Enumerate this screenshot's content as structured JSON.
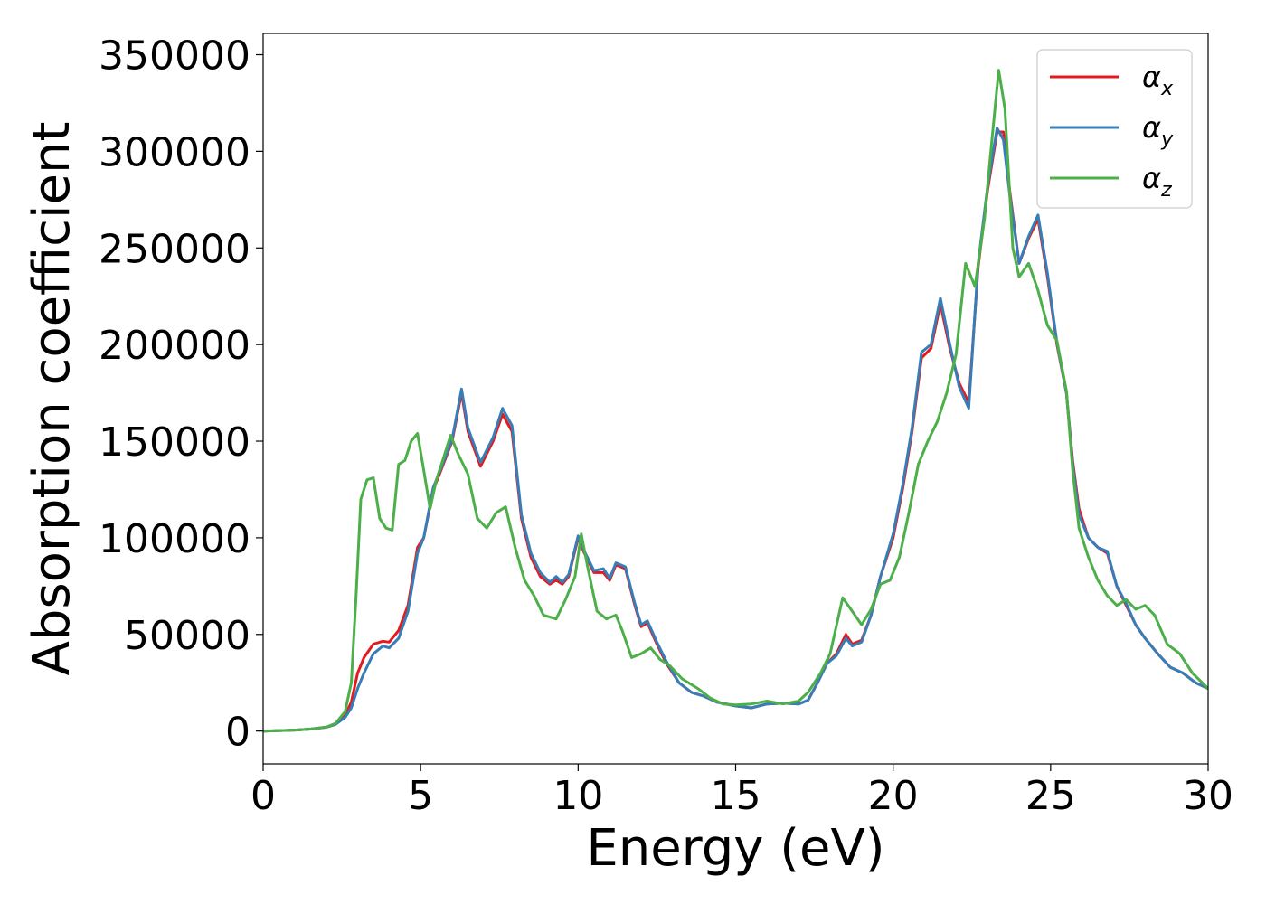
{
  "chart_data": {
    "type": "line",
    "title": "",
    "xlabel": "Energy (eV)",
    "ylabel": "Absorption coefficient",
    "xlim": [
      0,
      30
    ],
    "ylim": [
      -17000,
      361000
    ],
    "xticks": [
      0,
      5,
      10,
      15,
      20,
      25,
      30
    ],
    "yticks": [
      0,
      50000,
      100000,
      150000,
      200000,
      250000,
      300000,
      350000
    ],
    "grid": false,
    "legend_position": "top-right",
    "series": [
      {
        "name": "α",
        "name_subscript": "x",
        "color": "#e41a1c",
        "x": [
          0,
          1,
          1.5,
          2,
          2.3,
          2.6,
          2.8,
          3.0,
          3.2,
          3.5,
          3.8,
          4.0,
          4.3,
          4.6,
          4.9,
          5.1,
          5.4,
          5.6,
          6.0,
          6.3,
          6.5,
          6.9,
          7.3,
          7.6,
          7.9,
          8.2,
          8.5,
          8.8,
          9.1,
          9.3,
          9.5,
          9.7,
          10.0,
          10.2,
          10.5,
          10.8,
          11.0,
          11.2,
          11.5,
          11.8,
          12.0,
          12.2,
          12.5,
          12.8,
          13.2,
          13.6,
          14.0,
          14.4,
          15.0,
          15.5,
          16.0,
          16.5,
          17.0,
          17.3,
          17.6,
          17.9,
          18.2,
          18.5,
          18.7,
          19.0,
          19.3,
          19.6,
          20.0,
          20.3,
          20.6,
          20.9,
          21.2,
          21.5,
          21.8,
          22.1,
          22.4,
          22.7,
          23.0,
          23.3,
          23.5,
          23.7,
          24.0,
          24.3,
          24.6,
          24.9,
          25.2,
          25.5,
          25.7,
          25.9,
          26.2,
          26.5,
          26.8,
          27.1,
          27.4,
          27.7,
          28.0,
          28.4,
          28.8,
          29.2,
          29.6,
          30.0
        ],
        "y": [
          0,
          500,
          1000,
          2000,
          3500,
          8000,
          15000,
          30000,
          38000,
          45000,
          46500,
          46000,
          52000,
          65000,
          95000,
          100000,
          125000,
          133000,
          150000,
          175000,
          155000,
          137000,
          150000,
          164000,
          155000,
          110000,
          90000,
          80000,
          76000,
          78000,
          76000,
          80000,
          100000,
          92000,
          82000,
          82000,
          78000,
          86000,
          84000,
          65000,
          54000,
          56000,
          45000,
          35000,
          25000,
          20000,
          18000,
          15000,
          13000,
          12000,
          14000,
          14500,
          14000,
          16000,
          25000,
          35000,
          40000,
          50000,
          45000,
          47000,
          60000,
          80000,
          100000,
          125000,
          155000,
          193000,
          198000,
          221000,
          198000,
          180000,
          170000,
          240000,
          280000,
          310000,
          310000,
          280000,
          242000,
          255000,
          265000,
          235000,
          200000,
          175000,
          140000,
          115000,
          100000,
          95000,
          92000,
          75000,
          65000,
          55000,
          48000,
          40000,
          33000,
          30000,
          25000,
          22000
        ]
      },
      {
        "name": "α",
        "name_subscript": "y",
        "color": "#377eb8",
        "x": [
          0,
          1,
          1.5,
          2,
          2.3,
          2.6,
          2.8,
          3.0,
          3.2,
          3.5,
          3.8,
          4.0,
          4.3,
          4.6,
          4.9,
          5.1,
          5.4,
          5.6,
          6.0,
          6.3,
          6.5,
          6.9,
          7.3,
          7.6,
          7.9,
          8.2,
          8.5,
          8.8,
          9.1,
          9.3,
          9.5,
          9.7,
          10.0,
          10.2,
          10.5,
          10.8,
          11.0,
          11.2,
          11.5,
          11.8,
          12.0,
          12.2,
          12.5,
          12.8,
          13.2,
          13.6,
          14.0,
          14.4,
          15.0,
          15.5,
          16.0,
          16.5,
          17.0,
          17.3,
          17.6,
          17.9,
          18.2,
          18.5,
          18.7,
          19.0,
          19.3,
          19.6,
          20.0,
          20.3,
          20.6,
          20.9,
          21.2,
          21.5,
          21.8,
          22.1,
          22.4,
          22.7,
          23.0,
          23.3,
          23.5,
          23.7,
          24.0,
          24.3,
          24.6,
          24.9,
          25.2,
          25.5,
          25.7,
          25.9,
          26.2,
          26.5,
          26.8,
          27.1,
          27.4,
          27.7,
          28.0,
          28.4,
          28.8,
          29.2,
          29.6,
          30.0
        ],
        "y": [
          0,
          500,
          1000,
          2000,
          3500,
          7000,
          12000,
          22000,
          30000,
          40000,
          44000,
          43000,
          48000,
          62000,
          92000,
          100000,
          126000,
          134000,
          151000,
          177000,
          157000,
          139000,
          152000,
          167000,
          158000,
          112000,
          92000,
          82000,
          77000,
          80000,
          77000,
          81000,
          101000,
          93000,
          83000,
          84000,
          79000,
          87000,
          85000,
          66000,
          55000,
          57000,
          46000,
          36000,
          25000,
          20000,
          18000,
          15000,
          13000,
          12000,
          14000,
          14500,
          14000,
          16000,
          25000,
          35000,
          39000,
          48000,
          44000,
          46000,
          60000,
          80000,
          102000,
          127000,
          157000,
          196000,
          200000,
          224000,
          200000,
          178000,
          167000,
          242000,
          282000,
          312000,
          306000,
          278000,
          242000,
          256000,
          267000,
          237000,
          201000,
          175000,
          138000,
          112000,
          100000,
          95000,
          93000,
          75000,
          66000,
          55000,
          48000,
          40000,
          33000,
          30000,
          25000,
          22000
        ]
      },
      {
        "name": "α",
        "name_subscript": "z",
        "color": "#4daf4a",
        "x": [
          0,
          1,
          1.5,
          2,
          2.3,
          2.6,
          2.8,
          2.95,
          3.1,
          3.3,
          3.5,
          3.7,
          3.9,
          4.1,
          4.3,
          4.5,
          4.7,
          4.9,
          5.1,
          5.3,
          5.5,
          5.7,
          5.95,
          6.2,
          6.5,
          6.8,
          7.1,
          7.4,
          7.7,
          8.0,
          8.3,
          8.6,
          8.9,
          9.3,
          9.6,
          9.9,
          10.1,
          10.3,
          10.6,
          10.9,
          11.2,
          11.4,
          11.7,
          12.0,
          12.3,
          12.6,
          12.9,
          13.3,
          13.8,
          14.2,
          14.6,
          15.0,
          15.5,
          16.0,
          16.5,
          17.0,
          17.3,
          17.7,
          18.0,
          18.4,
          18.7,
          19.0,
          19.3,
          19.6,
          19.9,
          20.2,
          20.5,
          20.8,
          21.1,
          21.4,
          21.7,
          22.0,
          22.3,
          22.6,
          22.9,
          23.1,
          23.35,
          23.55,
          23.8,
          24.0,
          24.3,
          24.6,
          24.9,
          25.2,
          25.5,
          25.7,
          25.9,
          26.2,
          26.5,
          26.8,
          27.1,
          27.4,
          27.7,
          28.0,
          28.3,
          28.7,
          29.1,
          29.5,
          30.0
        ],
        "y": [
          0,
          500,
          1000,
          2000,
          4000,
          10000,
          25000,
          70000,
          120000,
          130000,
          131000,
          110000,
          105000,
          104000,
          138000,
          140000,
          150000,
          154000,
          135000,
          115000,
          130000,
          140000,
          153000,
          143000,
          133000,
          110000,
          105000,
          113000,
          116000,
          95000,
          78000,
          70000,
          60000,
          58000,
          68000,
          80000,
          102000,
          85000,
          62000,
          58000,
          60000,
          52000,
          38000,
          40000,
          43000,
          37000,
          34000,
          27000,
          22000,
          17000,
          14000,
          13500,
          14000,
          15500,
          14000,
          15500,
          20000,
          30000,
          40000,
          69000,
          62000,
          55000,
          63000,
          76000,
          78000,
          90000,
          113000,
          138000,
          150000,
          160000,
          175000,
          195000,
          242000,
          230000,
          265000,
          300000,
          342000,
          322000,
          250000,
          235000,
          242000,
          228000,
          210000,
          202000,
          176000,
          135000,
          105000,
          90000,
          78000,
          70000,
          65000,
          68000,
          63000,
          65000,
          60000,
          45000,
          40000,
          30000,
          22000
        ]
      }
    ]
  }
}
